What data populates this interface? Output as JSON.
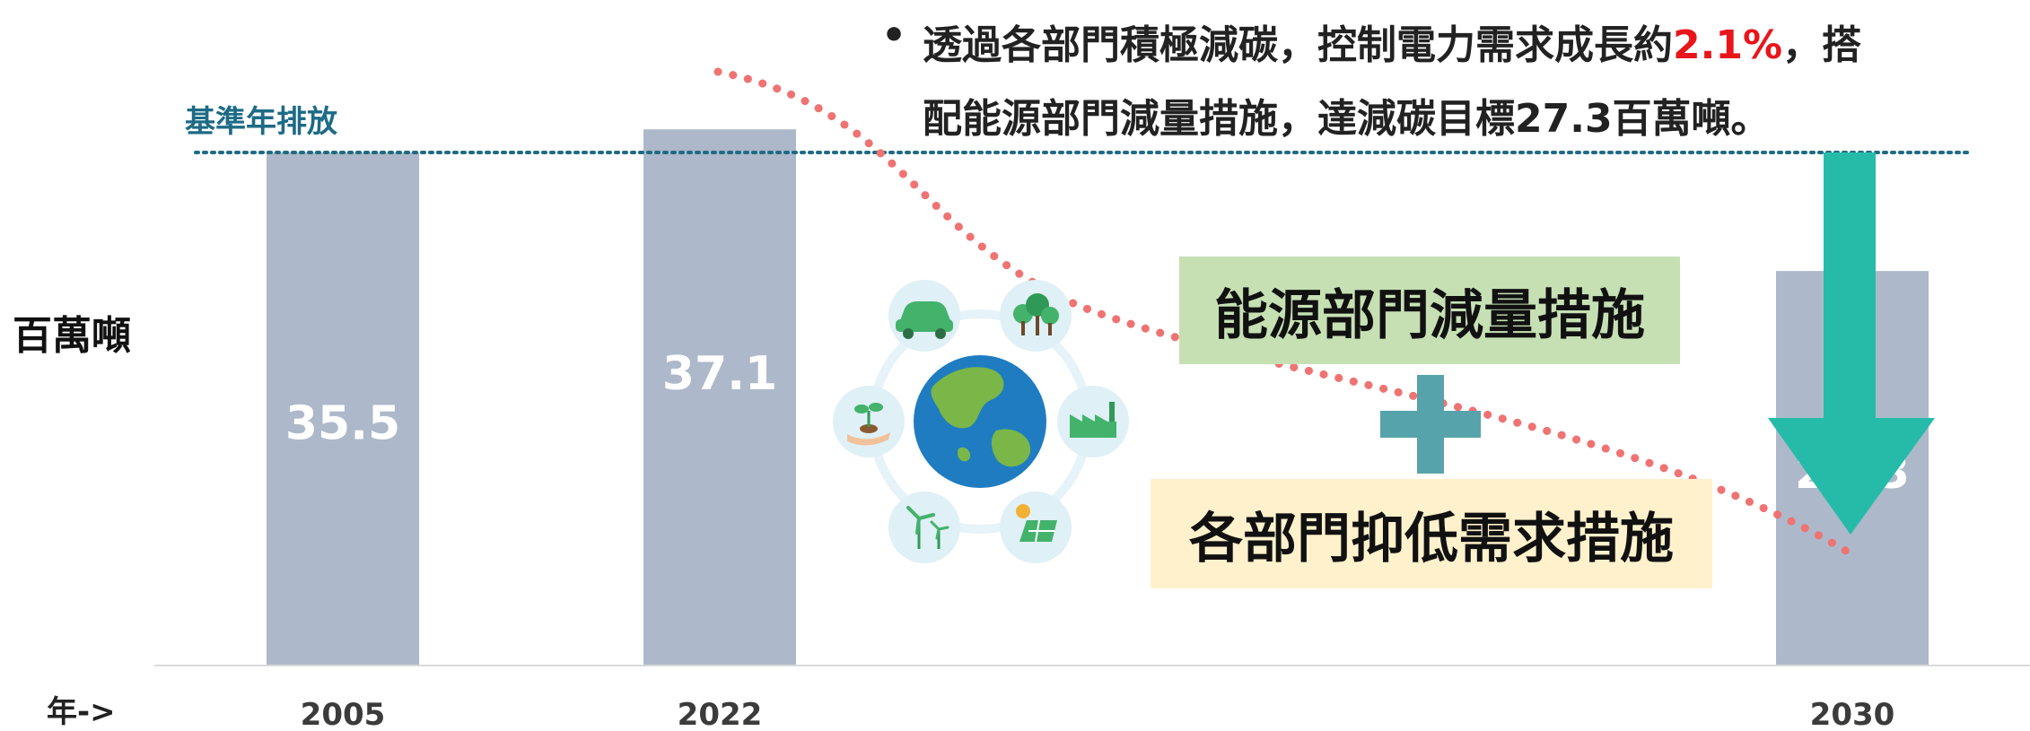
{
  "note": {
    "line1_pre": "透過各部門積極減碳，控制電力需求成長約",
    "line1_highlight": "2.1%",
    "line1_post": "，搭",
    "line2": "配能源部門減量措施，達減碳目標27.3百萬噸。"
  },
  "y_unit": "百萬噸",
  "x_prefix": "年->",
  "baseline_label": "基準年排放",
  "measures": {
    "energy": "能源部門減量措施",
    "demand": "各部門抑低需求措施"
  },
  "colors": {
    "bar": "#adb9ca",
    "baseline": "#1d6b86",
    "trend": "#ef7373",
    "arrow": "#26bba9",
    "plus": "#57a3ab",
    "energy_box": "#c6e0b4",
    "demand_box": "#fff1cc",
    "highlight": "#e8161b"
  },
  "chart_data": {
    "type": "bar",
    "categories": [
      "2005",
      "2022",
      "2030"
    ],
    "values": [
      35.5,
      37.1,
      27.3
    ],
    "data_labels": [
      "35.5",
      "37.1",
      "27.3"
    ],
    "baseline_value": 35.5,
    "ylim": [
      0,
      40
    ],
    "grid": false,
    "legend": "none",
    "xlabel": "年->",
    "ylabel": "百萬噸"
  },
  "icons": [
    "globe-icon",
    "car-icon",
    "trees-icon",
    "factory-icon",
    "solar-panel-icon",
    "wind-turbine-icon",
    "seedling-hand-icon"
  ]
}
